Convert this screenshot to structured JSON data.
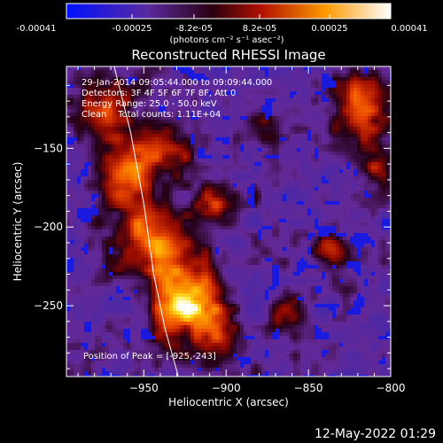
{
  "colorbar": {
    "ticks": [
      "-0.00041",
      "-0.00025",
      "-8.2e-05",
      "8.2e-05",
      "0.00025",
      "0.00041"
    ],
    "units": "(photons cm⁻² s⁻¹ asec⁻²)",
    "range": [
      -0.00041,
      0.00041
    ]
  },
  "title": "Reconstructed RHESSI Image",
  "annotations": [
    "29-Jan-2014 09:05:44.000 to 09:09:44.000",
    "Detectors: 3F 4F 5F 6F 7F 8F, Att 0",
    "Energy Range: 25.0 - 50.0 keV",
    "Clean    Total counts: 1.11E+04"
  ],
  "peak_label": "Position of Peak = [-925,-243]",
  "footer_date": "12-May-2022 01:29",
  "chart_data": {
    "type": "heatmap",
    "title": "Reconstructed RHESSI Image",
    "xlabel": "Heliocentric X (arcsec)",
    "ylabel": "Heliocentric Y (arcsec)",
    "xlim": [
      -997,
      -800
    ],
    "ylim": [
      -295,
      -98
    ],
    "x_ticks": [
      -950,
      -900,
      -850,
      -800
    ],
    "x_tick_labels": [
      "-950",
      "-900",
      "-850",
      "-800"
    ],
    "y_ticks": [
      -150,
      -200,
      -250
    ],
    "y_tick_labels": [
      "-150",
      "-200",
      "-250"
    ],
    "colorscale": [
      "#0010ff",
      "#5a2aa0",
      "#7a1a8a",
      "#2a0010",
      "#9a0a00",
      "#e04000",
      "#ff9a00",
      "#ffe000",
      "#ffffff"
    ],
    "peak": [
      -925,
      -243
    ],
    "limb": [
      [
        -968,
        -98
      ],
      [
        -958,
        -140
      ],
      [
        -950,
        -185
      ],
      [
        -944,
        -230
      ],
      [
        -937,
        -265
      ],
      [
        -929,
        -295
      ]
    ],
    "sources": [
      {
        "x": -925,
        "y": -243,
        "sx": 14,
        "sy": 22,
        "amp": 1.0
      },
      {
        "x": -950,
        "y": -205,
        "sx": 12,
        "sy": 18,
        "amp": 0.8
      },
      {
        "x": -960,
        "y": -165,
        "sx": 13,
        "sy": 14,
        "amp": 0.7
      },
      {
        "x": -975,
        "y": -125,
        "sx": 14,
        "sy": 14,
        "amp": 0.65
      },
      {
        "x": -905,
        "y": -265,
        "sx": 10,
        "sy": 14,
        "amp": 0.6
      },
      {
        "x": -905,
        "y": -185,
        "sx": 10,
        "sy": 10,
        "amp": 0.55
      },
      {
        "x": -935,
        "y": -150,
        "sx": 10,
        "sy": 12,
        "amp": 0.5
      },
      {
        "x": -820,
        "y": -125,
        "sx": 12,
        "sy": 14,
        "amp": 0.7
      },
      {
        "x": -810,
        "y": -160,
        "sx": 8,
        "sy": 10,
        "amp": 0.55
      },
      {
        "x": -835,
        "y": -215,
        "sx": 9,
        "sy": 8,
        "amp": 0.45
      },
      {
        "x": -880,
        "y": -140,
        "sx": 8,
        "sy": 8,
        "amp": 0.45
      },
      {
        "x": -865,
        "y": -255,
        "sx": 8,
        "sy": 9,
        "amp": 0.4
      }
    ]
  }
}
